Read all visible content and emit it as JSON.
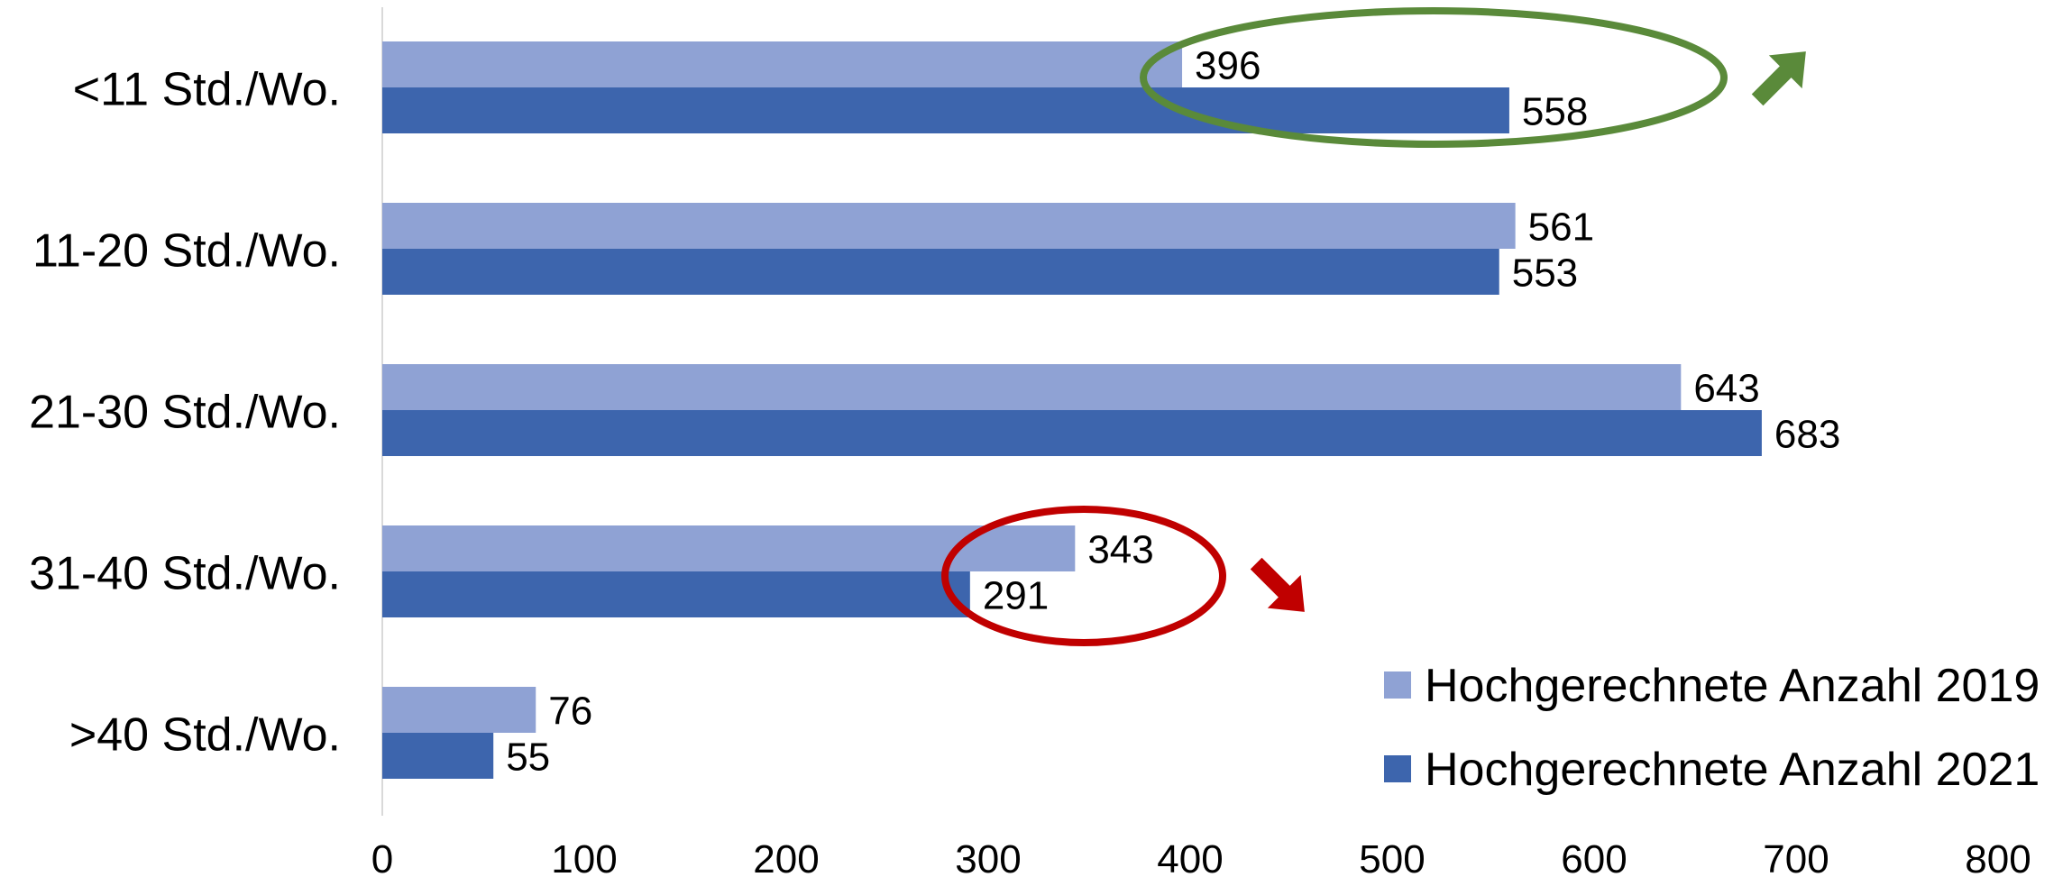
{
  "chart_data": {
    "type": "bar",
    "orientation": "horizontal",
    "categories": [
      "<11 Std./Wo.",
      "11-20 Std./Wo.",
      "21-30 Std./Wo.",
      "31-40 Std./Wo.",
      ">40 Std./Wo."
    ],
    "series": [
      {
        "name": "Hochgerechnete Anzahl 2019",
        "values": [
          396,
          561,
          643,
          343,
          76
        ],
        "color": "#8FA2D4"
      },
      {
        "name": "Hochgerechnete Anzahl 2021",
        "values": [
          558,
          553,
          683,
          291,
          55
        ],
        "color": "#3D65AD"
      }
    ],
    "xlim": [
      0,
      800
    ],
    "xticks": [
      "0",
      "100",
      "200",
      "300",
      "400",
      "500",
      "600",
      "700",
      "800"
    ],
    "grid": false,
    "legend": "bottom-right",
    "annotations": [
      {
        "type": "ellipse",
        "category": "<11 Std./Wo.",
        "color": "#5A8A3A",
        "arrow": "up-right"
      },
      {
        "type": "ellipse",
        "category": "31-40 Std./Wo.",
        "color": "#C00000",
        "arrow": "down-right"
      }
    ]
  }
}
